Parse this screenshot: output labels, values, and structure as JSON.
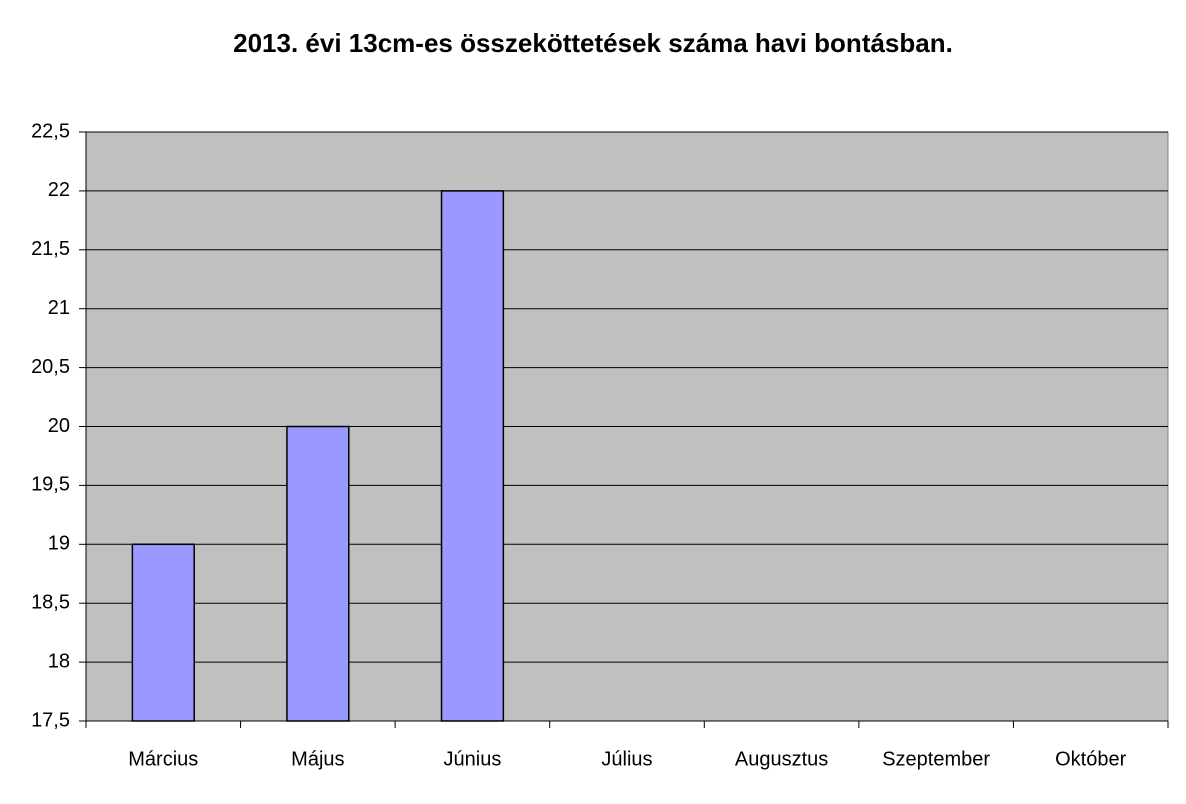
{
  "chart_data": {
    "type": "bar",
    "title": "2013. évi 13cm-es összeköttetések száma havi bontásban.",
    "categories": [
      "Március",
      "Május",
      "Június",
      "Július",
      "Augusztus",
      "Szeptember",
      "Október"
    ],
    "values": [
      19,
      20,
      22,
      null,
      null,
      null,
      null
    ],
    "color": "#9999ff",
    "ylim": [
      17.5,
      22.5
    ],
    "yticks": [
      {
        "value": 17.5,
        "label": "17,5"
      },
      18,
      {
        "value": 18.5,
        "label": "18,5"
      },
      19,
      {
        "value": 19.5,
        "label": "19,5"
      },
      20,
      {
        "value": 20.5,
        "label": "20,5"
      },
      21,
      {
        "value": 21.5,
        "label": "21,5"
      },
      22,
      {
        "value": 22.5,
        "label": "22,5"
      }
    ],
    "grid": true
  }
}
